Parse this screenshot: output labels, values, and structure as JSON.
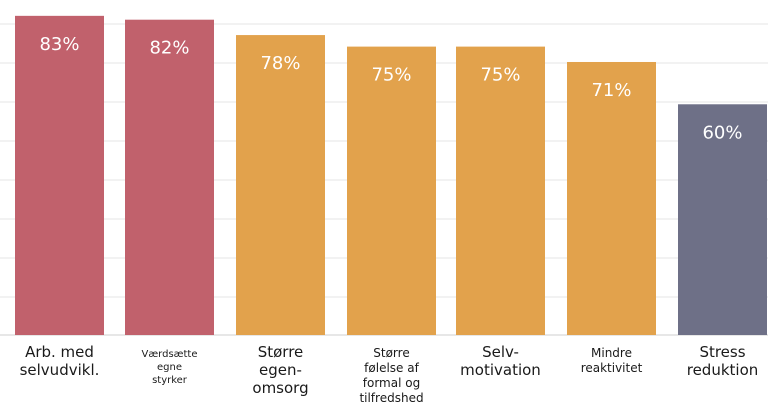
{
  "chart_data": {
    "type": "bar",
    "title": "",
    "xlabel": "",
    "ylabel": "",
    "ylim": [
      0,
      84
    ],
    "grid": true,
    "categories": [
      "Arb. med selvudvikl.",
      "Værdsætte egne styrker",
      "Større egen-omsorg",
      "Større følelse af formal og tilfredshed",
      "Selv-motivation",
      "Mindre reaktivitet",
      "Stress reduktion"
    ],
    "category_lines": [
      [
        "Arb. med",
        "selvudvikl."
      ],
      [
        "Værdsætte",
        "egne",
        "styrker"
      ],
      [
        "Større",
        "egen-",
        "omsorg"
      ],
      [
        "Større",
        "følelse af",
        "formal og",
        "tilfredshed"
      ],
      [
        "Selv-",
        "motivation"
      ],
      [
        "Mindre",
        "reaktivitet"
      ],
      [
        "Stress",
        "reduktion"
      ]
    ],
    "values": [
      83,
      82,
      78,
      75,
      75,
      71,
      60
    ],
    "value_labels": [
      "83%",
      "82%",
      "78%",
      "75%",
      "75%",
      "71%",
      "60%"
    ],
    "colors": [
      "#c1616c",
      "#c1616c",
      "#e2a24c",
      "#e2a24c",
      "#e2a24c",
      "#e2a24c",
      "#6e7087"
    ]
  }
}
